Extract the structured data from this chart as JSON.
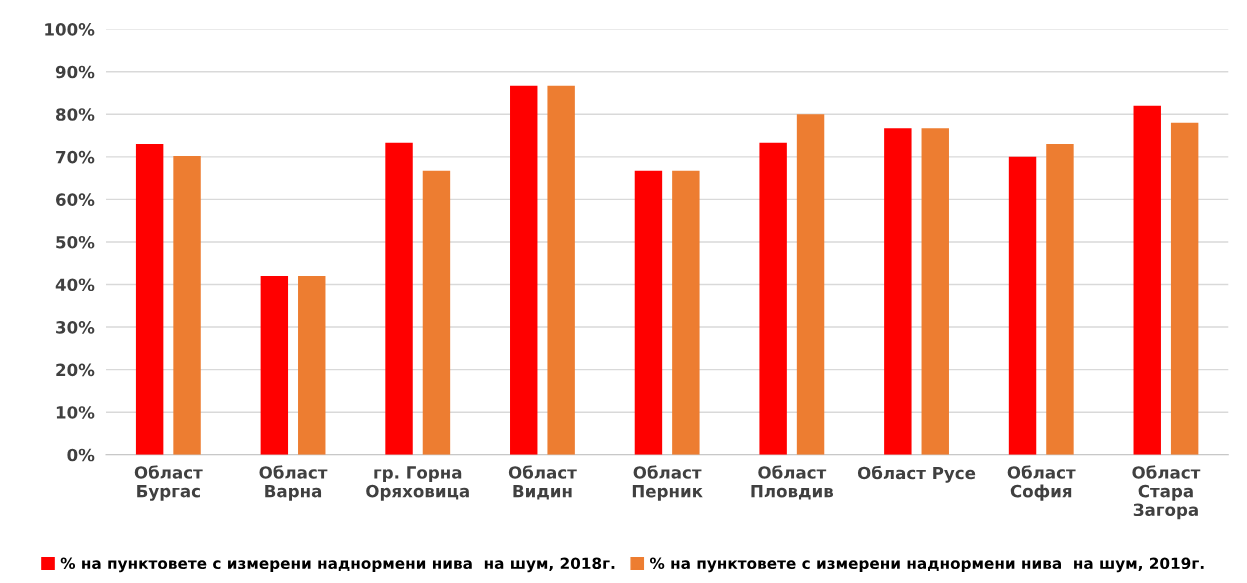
{
  "chart_data": {
    "type": "bar",
    "categories": [
      "Област\nБургас",
      "Област\nВарна",
      "гр. Горна\nОряховица",
      "Област\nВидин",
      "Област\nПерник",
      "Област\nПловдив",
      "Област Русе",
      "Област\nСофия",
      "Област\nСтара\nЗагора"
    ],
    "series": [
      {
        "name": "% на пунктовете с измерени наднормени нива  на шум, 2018г.",
        "color": "#ff0000",
        "values": [
          73,
          42,
          73.3,
          86.7,
          66.7,
          73.3,
          76.7,
          70,
          82
        ]
      },
      {
        "name": "% на пунктовете с измерени наднормени нива  на шум, 2019г.",
        "color": "#ed7d31",
        "values": [
          70.2,
          42,
          66.7,
          86.7,
          66.7,
          80,
          76.7,
          73,
          78
        ]
      }
    ],
    "ylim": [
      0,
      100
    ],
    "yticks": [
      {
        "value": 0,
        "label": "0%"
      },
      {
        "value": 10,
        "label": "10%"
      },
      {
        "value": 20,
        "label": "20%"
      },
      {
        "value": 30,
        "label": "30%"
      },
      {
        "value": 40,
        "label": "40%"
      },
      {
        "value": 50,
        "label": "50%"
      },
      {
        "value": 60,
        "label": "60%"
      },
      {
        "value": 70,
        "label": "70%"
      },
      {
        "value": 80,
        "label": "80%"
      },
      {
        "value": 90,
        "label": "90%"
      },
      {
        "value": 100,
        "label": "100%"
      }
    ],
    "grid": "y",
    "legend": "bottom"
  }
}
